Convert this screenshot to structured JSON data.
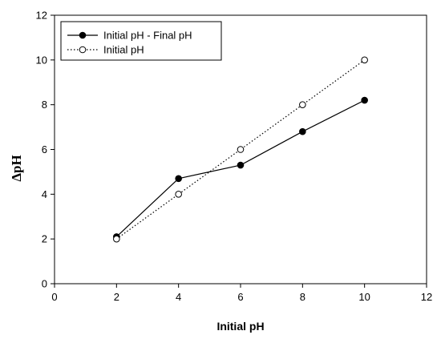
{
  "chart_data": {
    "type": "line",
    "xlabel": "Initial pH",
    "ylabel": "ΔpH",
    "xlim": [
      0,
      12
    ],
    "ylim": [
      0,
      12
    ],
    "xticks": [
      0,
      2,
      4,
      6,
      8,
      10,
      12
    ],
    "yticks": [
      0,
      2,
      4,
      6,
      8,
      10,
      12
    ],
    "grid": false,
    "legend_position": "top-left",
    "series": [
      {
        "name": "Initial pH - Final pH",
        "marker": "filled-circle",
        "line_style": "solid",
        "x": [
          2,
          4,
          6,
          8,
          10
        ],
        "y": [
          2.1,
          4.7,
          5.3,
          6.8,
          8.2
        ]
      },
      {
        "name": "Initial pH",
        "marker": "open-circle",
        "line_style": "dotted",
        "x": [
          2,
          4,
          6,
          8,
          10
        ],
        "y": [
          2.0,
          4.0,
          6.0,
          8.0,
          10.0
        ]
      }
    ]
  }
}
